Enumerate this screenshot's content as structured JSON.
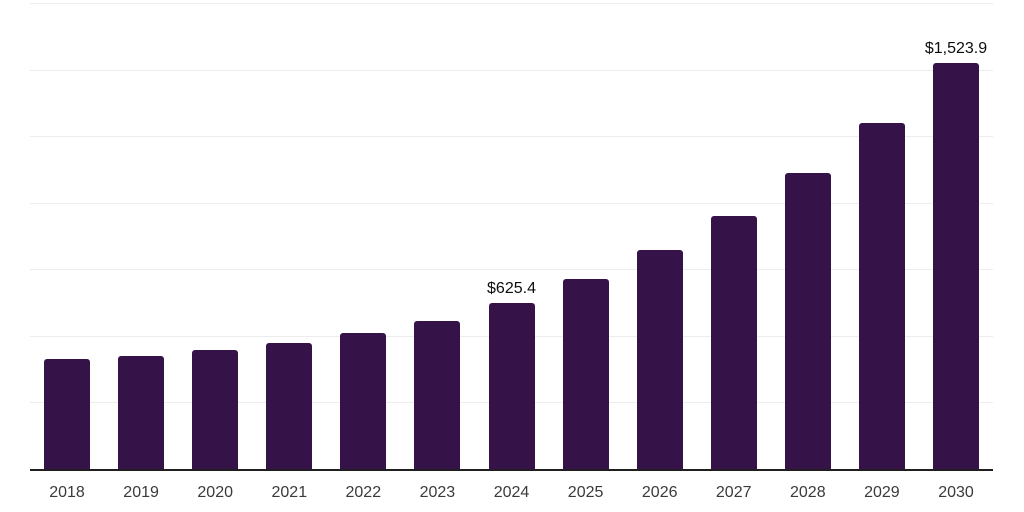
{
  "chart_data": {
    "type": "bar",
    "categories": [
      "2018",
      "2019",
      "2020",
      "2021",
      "2022",
      "2023",
      "2024",
      "2025",
      "2026",
      "2027",
      "2028",
      "2029",
      "2030"
    ],
    "values": [
      413.4,
      425.8,
      445.6,
      473.2,
      510.2,
      557.6,
      625.4,
      713.4,
      824.3,
      949.8,
      1110.4,
      1298.7,
      1523.9
    ],
    "data_labels": [
      {
        "category": "2024",
        "text": "$625.4"
      },
      {
        "category": "2030",
        "text": "$1,523.9"
      }
    ],
    "ylim": [
      0,
      1750
    ],
    "gridline_step": 250,
    "grid": "horizontal-only",
    "y_tick_labels_visible": false,
    "legend": "none",
    "colors": {
      "bar": "#351349",
      "gridline": "#ededed",
      "axis_line": "#1f1f1f",
      "tick_label": "#3a3a3a",
      "value_label": "#0d0d0d",
      "background": "#ffffff"
    }
  }
}
